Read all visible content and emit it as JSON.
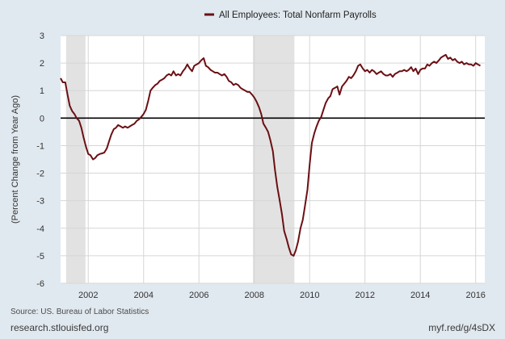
{
  "chart_data": {
    "type": "line",
    "title": "",
    "ylabel": "(Percent Change from Year Ago)",
    "xlabel": "",
    "ylim": [
      -6,
      3
    ],
    "xlim": [
      2001.0,
      2016.33
    ],
    "yticks": [
      3,
      2,
      1,
      0,
      -1,
      -2,
      -3,
      -4,
      -5,
      -6
    ],
    "xticks": [
      2002,
      2004,
      2006,
      2008,
      2010,
      2012,
      2014,
      2016
    ],
    "grid": true,
    "legend": "top-center",
    "recessions": [
      [
        2001.2,
        2001.9
      ],
      [
        2007.95,
        2009.45
      ]
    ],
    "zero_line": 0,
    "series": [
      {
        "name": "All Employees: Total Nonfarm Payrolls",
        "color": "#6b0f14",
        "points": [
          [
            2001.0,
            1.45
          ],
          [
            2001.08,
            1.3
          ],
          [
            2001.17,
            1.3
          ],
          [
            2001.25,
            0.85
          ],
          [
            2001.33,
            0.45
          ],
          [
            2001.42,
            0.25
          ],
          [
            2001.5,
            0.15
          ],
          [
            2001.58,
            0.0
          ],
          [
            2001.67,
            -0.1
          ],
          [
            2001.75,
            -0.35
          ],
          [
            2001.83,
            -0.7
          ],
          [
            2001.92,
            -1.05
          ],
          [
            2002.0,
            -1.3
          ],
          [
            2002.08,
            -1.35
          ],
          [
            2002.17,
            -1.5
          ],
          [
            2002.25,
            -1.45
          ],
          [
            2002.33,
            -1.35
          ],
          [
            2002.42,
            -1.3
          ],
          [
            2002.5,
            -1.28
          ],
          [
            2002.58,
            -1.25
          ],
          [
            2002.67,
            -1.1
          ],
          [
            2002.75,
            -0.85
          ],
          [
            2002.83,
            -0.6
          ],
          [
            2002.92,
            -0.4
          ],
          [
            2003.0,
            -0.35
          ],
          [
            2003.08,
            -0.25
          ],
          [
            2003.17,
            -0.3
          ],
          [
            2003.25,
            -0.35
          ],
          [
            2003.33,
            -0.3
          ],
          [
            2003.42,
            -0.35
          ],
          [
            2003.5,
            -0.3
          ],
          [
            2003.58,
            -0.25
          ],
          [
            2003.67,
            -0.2
          ],
          [
            2003.75,
            -0.1
          ],
          [
            2003.83,
            -0.05
          ],
          [
            2003.92,
            0.05
          ],
          [
            2004.0,
            0.15
          ],
          [
            2004.08,
            0.3
          ],
          [
            2004.17,
            0.65
          ],
          [
            2004.25,
            1.0
          ],
          [
            2004.33,
            1.1
          ],
          [
            2004.42,
            1.2
          ],
          [
            2004.5,
            1.25
          ],
          [
            2004.58,
            1.35
          ],
          [
            2004.67,
            1.4
          ],
          [
            2004.75,
            1.45
          ],
          [
            2004.83,
            1.55
          ],
          [
            2004.92,
            1.6
          ],
          [
            2005.0,
            1.55
          ],
          [
            2005.08,
            1.7
          ],
          [
            2005.17,
            1.55
          ],
          [
            2005.25,
            1.6
          ],
          [
            2005.33,
            1.55
          ],
          [
            2005.42,
            1.7
          ],
          [
            2005.5,
            1.8
          ],
          [
            2005.58,
            1.95
          ],
          [
            2005.67,
            1.8
          ],
          [
            2005.75,
            1.7
          ],
          [
            2005.83,
            1.9
          ],
          [
            2005.92,
            1.95
          ],
          [
            2006.0,
            2.0
          ],
          [
            2006.08,
            2.1
          ],
          [
            2006.17,
            2.18
          ],
          [
            2006.25,
            1.9
          ],
          [
            2006.33,
            1.85
          ],
          [
            2006.42,
            1.75
          ],
          [
            2006.5,
            1.7
          ],
          [
            2006.58,
            1.65
          ],
          [
            2006.67,
            1.65
          ],
          [
            2006.75,
            1.6
          ],
          [
            2006.83,
            1.55
          ],
          [
            2006.92,
            1.6
          ],
          [
            2007.0,
            1.5
          ],
          [
            2007.08,
            1.35
          ],
          [
            2007.17,
            1.3
          ],
          [
            2007.25,
            1.2
          ],
          [
            2007.33,
            1.25
          ],
          [
            2007.42,
            1.2
          ],
          [
            2007.5,
            1.1
          ],
          [
            2007.58,
            1.05
          ],
          [
            2007.67,
            1.0
          ],
          [
            2007.75,
            0.95
          ],
          [
            2007.83,
            0.95
          ],
          [
            2007.92,
            0.85
          ],
          [
            2008.0,
            0.75
          ],
          [
            2008.08,
            0.6
          ],
          [
            2008.17,
            0.4
          ],
          [
            2008.25,
            0.15
          ],
          [
            2008.33,
            -0.2
          ],
          [
            2008.42,
            -0.35
          ],
          [
            2008.5,
            -0.5
          ],
          [
            2008.58,
            -0.8
          ],
          [
            2008.67,
            -1.2
          ],
          [
            2008.75,
            -1.9
          ],
          [
            2008.83,
            -2.5
          ],
          [
            2008.92,
            -3.0
          ],
          [
            2009.0,
            -3.5
          ],
          [
            2009.08,
            -4.1
          ],
          [
            2009.17,
            -4.4
          ],
          [
            2009.25,
            -4.7
          ],
          [
            2009.33,
            -4.95
          ],
          [
            2009.42,
            -5.0
          ],
          [
            2009.5,
            -4.8
          ],
          [
            2009.58,
            -4.5
          ],
          [
            2009.67,
            -4.0
          ],
          [
            2009.75,
            -3.7
          ],
          [
            2009.83,
            -3.2
          ],
          [
            2009.92,
            -2.6
          ],
          [
            2010.0,
            -1.7
          ],
          [
            2010.08,
            -0.9
          ],
          [
            2010.17,
            -0.55
          ],
          [
            2010.25,
            -0.3
          ],
          [
            2010.33,
            -0.1
          ],
          [
            2010.42,
            0.05
          ],
          [
            2010.5,
            0.3
          ],
          [
            2010.58,
            0.55
          ],
          [
            2010.67,
            0.72
          ],
          [
            2010.75,
            0.8
          ],
          [
            2010.83,
            1.05
          ],
          [
            2010.92,
            1.1
          ],
          [
            2011.0,
            1.15
          ],
          [
            2011.08,
            0.85
          ],
          [
            2011.17,
            1.15
          ],
          [
            2011.25,
            1.25
          ],
          [
            2011.33,
            1.35
          ],
          [
            2011.42,
            1.5
          ],
          [
            2011.5,
            1.45
          ],
          [
            2011.58,
            1.55
          ],
          [
            2011.67,
            1.7
          ],
          [
            2011.75,
            1.9
          ],
          [
            2011.83,
            1.95
          ],
          [
            2011.92,
            1.8
          ],
          [
            2012.0,
            1.7
          ],
          [
            2012.08,
            1.75
          ],
          [
            2012.17,
            1.65
          ],
          [
            2012.25,
            1.75
          ],
          [
            2012.33,
            1.7
          ],
          [
            2012.42,
            1.6
          ],
          [
            2012.5,
            1.65
          ],
          [
            2012.58,
            1.7
          ],
          [
            2012.67,
            1.6
          ],
          [
            2012.75,
            1.55
          ],
          [
            2012.83,
            1.55
          ],
          [
            2012.92,
            1.6
          ],
          [
            2013.0,
            1.5
          ],
          [
            2013.08,
            1.6
          ],
          [
            2013.17,
            1.65
          ],
          [
            2013.25,
            1.7
          ],
          [
            2013.33,
            1.7
          ],
          [
            2013.42,
            1.75
          ],
          [
            2013.5,
            1.7
          ],
          [
            2013.58,
            1.75
          ],
          [
            2013.67,
            1.85
          ],
          [
            2013.75,
            1.7
          ],
          [
            2013.83,
            1.8
          ],
          [
            2013.92,
            1.6
          ],
          [
            2014.0,
            1.75
          ],
          [
            2014.08,
            1.8
          ],
          [
            2014.17,
            1.8
          ],
          [
            2014.25,
            1.95
          ],
          [
            2014.33,
            1.9
          ],
          [
            2014.42,
            2.0
          ],
          [
            2014.5,
            2.05
          ],
          [
            2014.58,
            2.0
          ],
          [
            2014.67,
            2.1
          ],
          [
            2014.75,
            2.2
          ],
          [
            2014.83,
            2.25
          ],
          [
            2014.92,
            2.3
          ],
          [
            2015.0,
            2.15
          ],
          [
            2015.08,
            2.2
          ],
          [
            2015.17,
            2.1
          ],
          [
            2015.25,
            2.15
          ],
          [
            2015.33,
            2.05
          ],
          [
            2015.42,
            2.0
          ],
          [
            2015.5,
            2.05
          ],
          [
            2015.58,
            1.95
          ],
          [
            2015.67,
            2.0
          ],
          [
            2015.75,
            1.95
          ],
          [
            2015.83,
            1.95
          ],
          [
            2015.92,
            1.9
          ],
          [
            2016.0,
            2.0
          ],
          [
            2016.08,
            1.95
          ],
          [
            2016.17,
            1.9
          ]
        ]
      }
    ]
  },
  "footer": {
    "source": "Source: US. Bureau of Labor Statistics",
    "site": "research.stlouisfed.org",
    "short_link": "myf.red/g/4sDX"
  }
}
